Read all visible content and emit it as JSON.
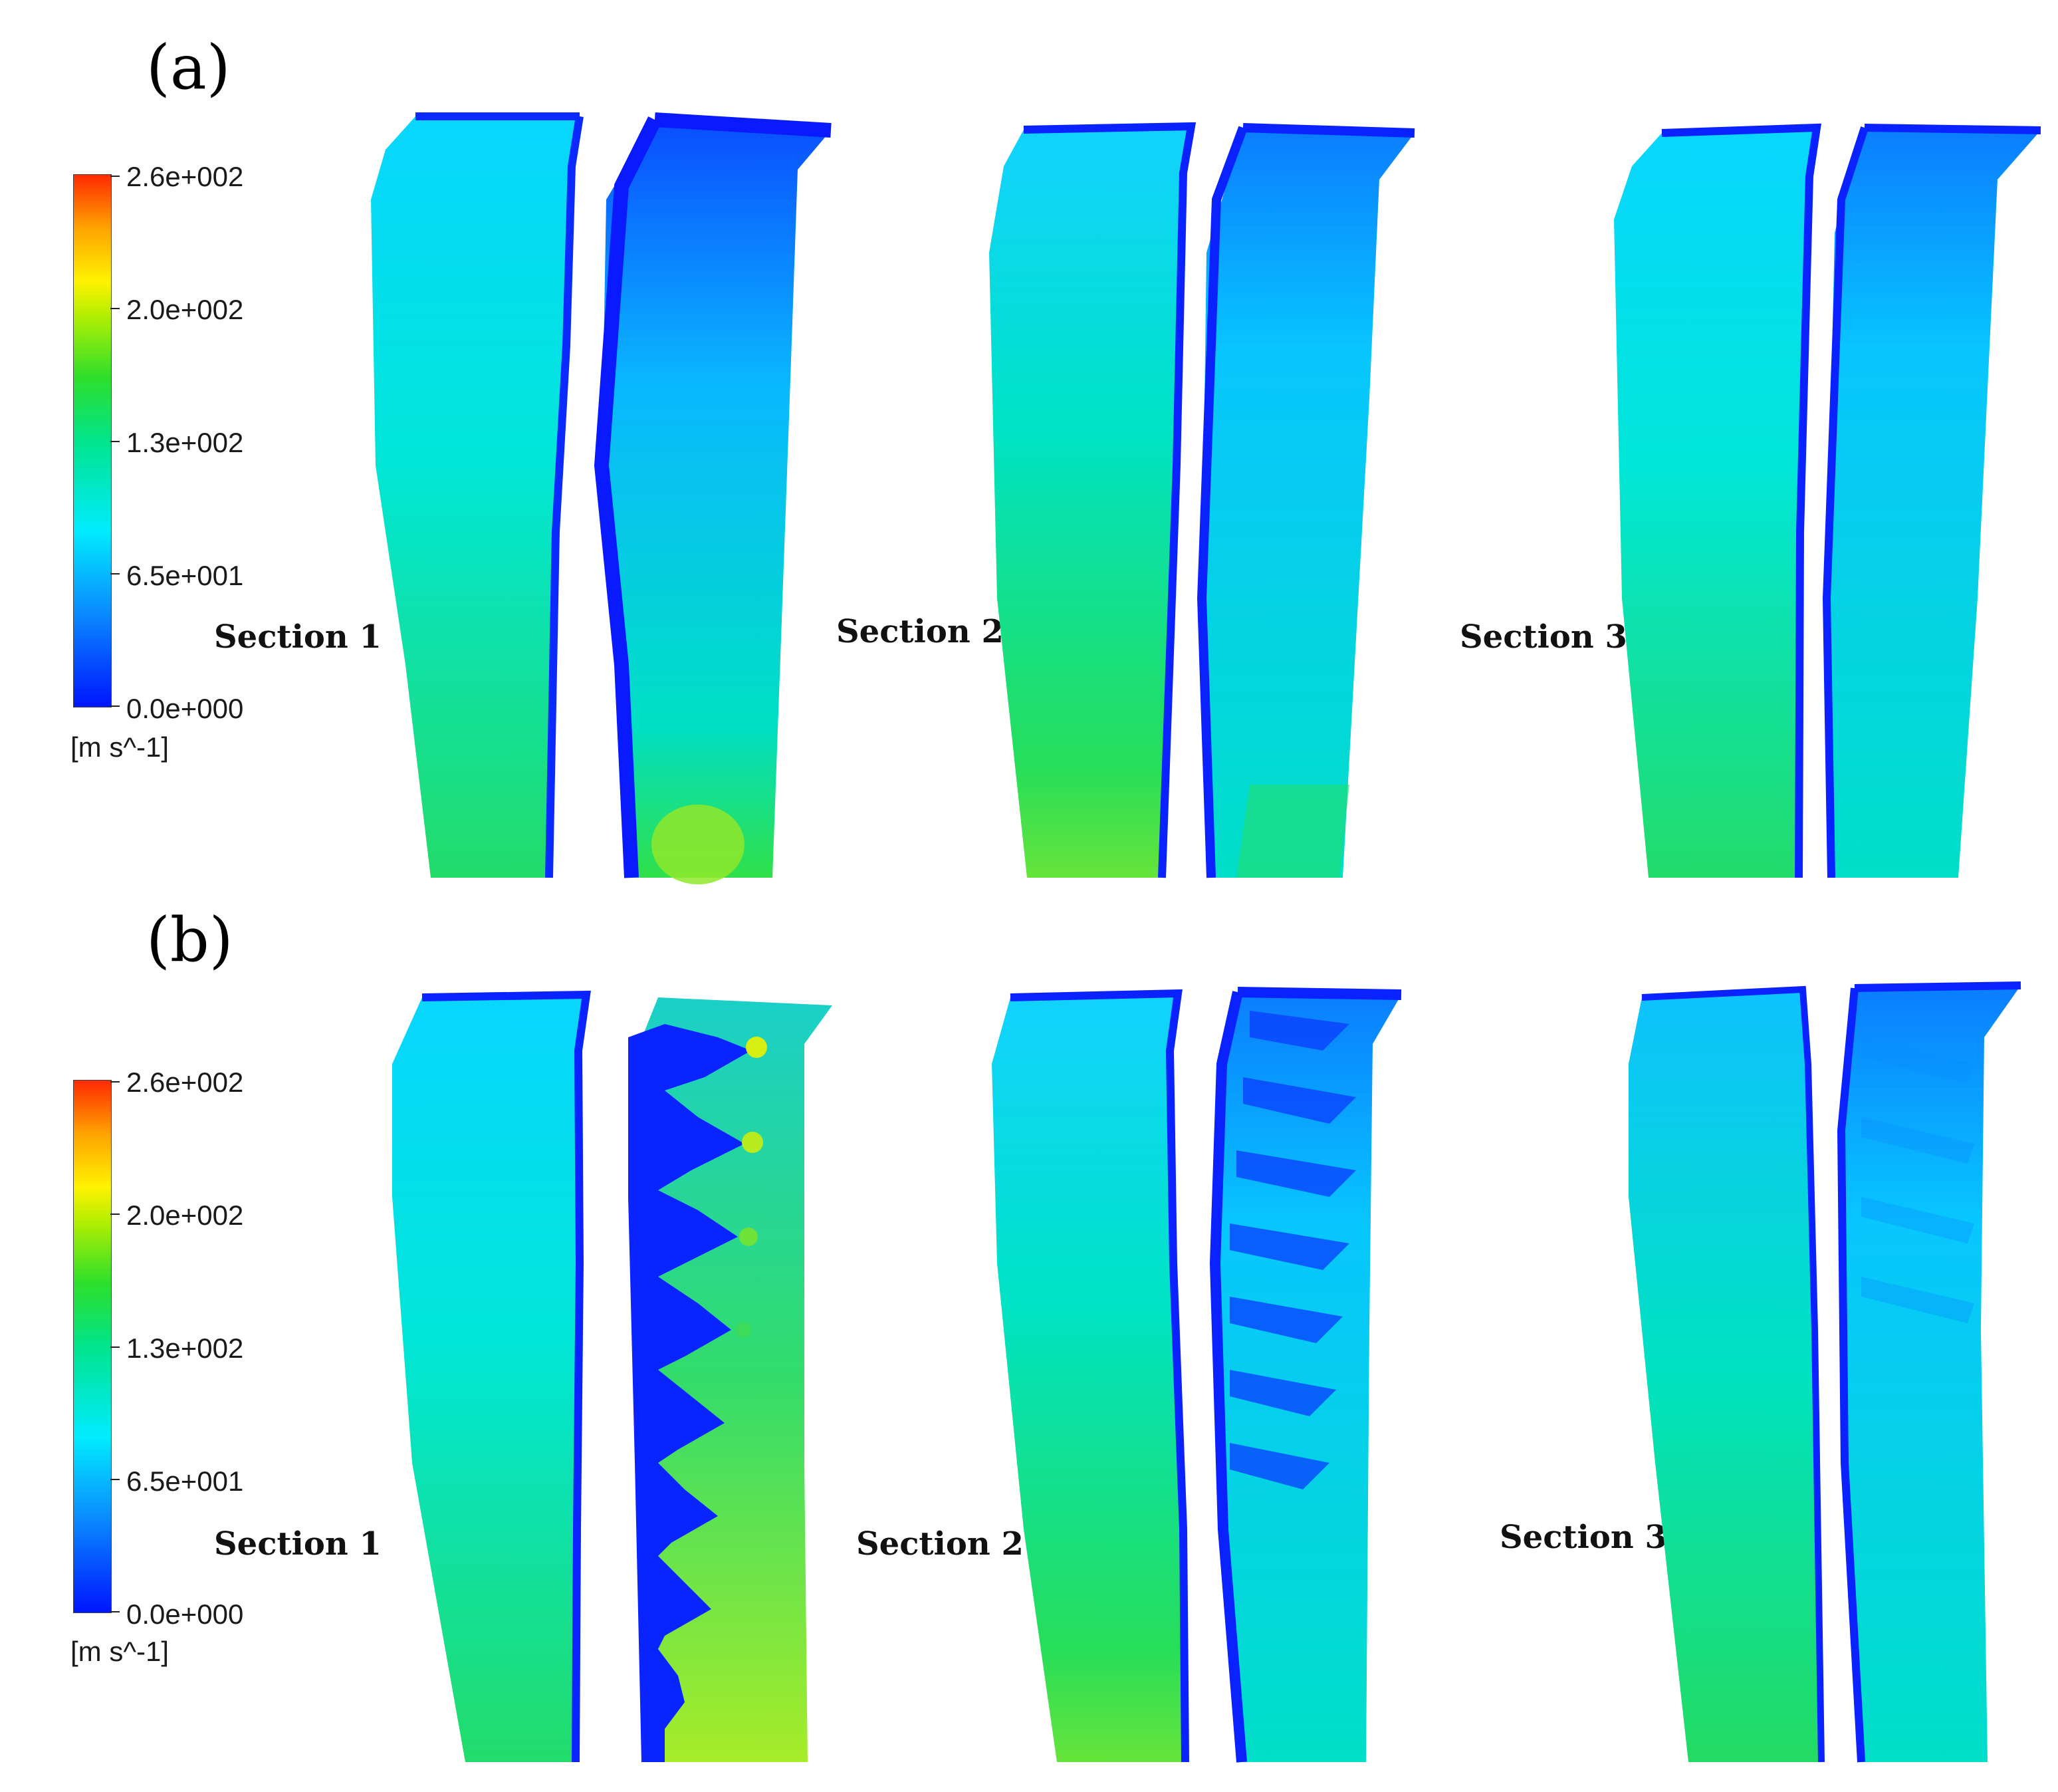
{
  "panels": [
    {
      "label": "(a)",
      "colorbar": {
        "ticks": [
          "2.6e+002",
          "2.0e+002",
          "1.3e+002",
          "6.5e+001",
          "0.0e+000"
        ],
        "unit": "[m s^-1]"
      },
      "sections": [
        "Section 1",
        "Section 2",
        "Section 3"
      ]
    },
    {
      "label": "(b)",
      "colorbar": {
        "ticks": [
          "2.6e+002",
          "2.0e+002",
          "1.3e+002",
          "6.5e+001",
          "0.0e+000"
        ],
        "unit": "[m s^-1]"
      },
      "sections": [
        "Section 1",
        "Section 2",
        "Section 3"
      ]
    }
  ],
  "colors": {
    "low": "#0015ff",
    "mid_low": "#00e6ff",
    "mid": "#19e07a",
    "mid_high": "#9fea1c",
    "high": "#ff2a00"
  }
}
